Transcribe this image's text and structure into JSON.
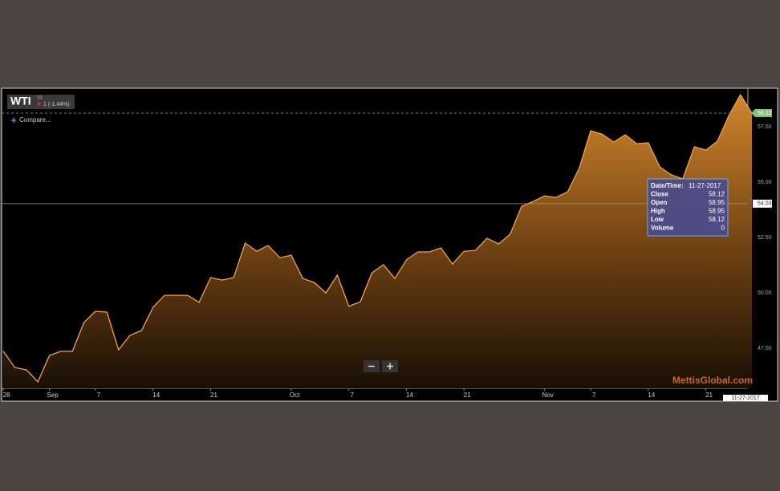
{
  "chart_data": {
    "type": "area",
    "symbol": "WTI",
    "symbol_note": "58",
    "change": "1 (-1.44%)",
    "compare": "Compare...",
    "values": [
      47.36,
      46.63,
      46.52,
      45.98,
      47.17,
      47.36,
      47.36,
      48.66,
      49.17,
      49.13,
      47.43,
      48.08,
      48.3,
      49.35,
      49.89,
      49.89,
      49.89,
      49.57,
      50.69,
      50.58,
      50.69,
      52.25,
      51.88,
      52.14,
      51.59,
      51.7,
      50.65,
      50.47,
      50.0,
      50.8,
      49.39,
      49.6,
      50.9,
      51.27,
      50.65,
      51.49,
      51.85,
      51.85,
      52.03,
      51.3,
      51.88,
      51.92,
      52.47,
      52.21,
      52.64,
      53.91,
      54.13,
      54.38,
      54.31,
      54.57,
      55.62,
      57.32,
      57.17,
      56.81,
      57.14,
      56.74,
      56.78,
      55.69,
      55.33,
      55.15,
      56.6,
      56.45,
      56.85,
      58.01,
      58.95,
      58.12
    ],
    "color": "#f2a24e",
    "xlim": [
      -0.15,
      64.65
    ],
    "xticks": [
      {
        "value": 0,
        "label": "28"
      },
      {
        "value": 4,
        "label": "Sep"
      },
      {
        "value": 8,
        "label": "7"
      },
      {
        "value": 13,
        "label": "14"
      },
      {
        "value": 18,
        "label": "21"
      },
      {
        "value": 25,
        "label": "Oct"
      },
      {
        "value": 30,
        "label": "7"
      },
      {
        "value": 35,
        "label": "14"
      },
      {
        "value": 40,
        "label": "21"
      },
      {
        "value": 47,
        "label": "Nov"
      },
      {
        "value": 51,
        "label": "7"
      },
      {
        "value": 56,
        "label": "14"
      },
      {
        "value": 61,
        "label": "21"
      }
    ],
    "ylim": [
      45.69,
      59.17
    ],
    "yticks": [
      {
        "value": 47.5,
        "label": "47.50"
      },
      {
        "value": 50,
        "label": "50.00"
      },
      {
        "value": 52.5,
        "label": "52.50"
      },
      {
        "value": 55,
        "label": "55.00"
      },
      {
        "value": 57.5,
        "label": "57.50"
      }
    ],
    "last_price": 58.12,
    "crosshair_value": 54.03,
    "crosshair_date": "11-27-2017",
    "tooltip": {
      "rows": [
        [
          "Date/Time:",
          "11-27-2017"
        ],
        [
          "Close",
          58.12
        ],
        [
          "Open",
          58.95
        ],
        [
          "High",
          58.95
        ],
        [
          "Low",
          58.12
        ],
        [
          "Volume",
          0
        ]
      ]
    },
    "watermark": "MettisGlobal.com"
  }
}
